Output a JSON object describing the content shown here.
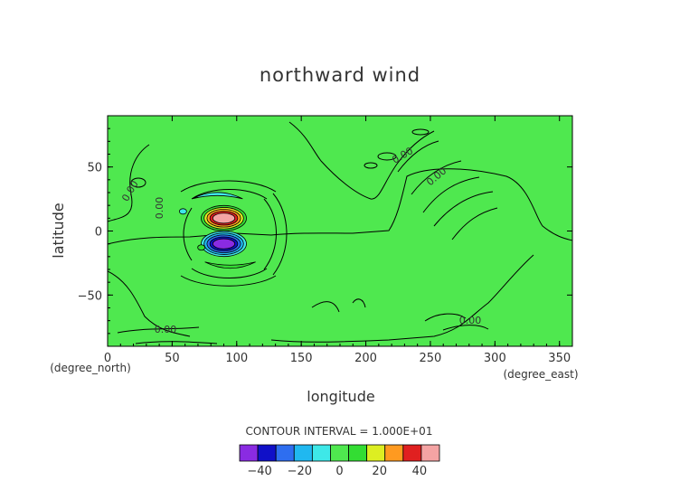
{
  "chart_data": {
    "type": "heatmap",
    "title": "northward wind",
    "xlabel": "longitude",
    "ylabel": "latitude",
    "x_unit": "(degree_east)",
    "y_unit": "(degree_north)",
    "xlim": [
      0,
      360
    ],
    "ylim": [
      -90,
      90
    ],
    "x_ticks": [
      0,
      50,
      100,
      150,
      200,
      250,
      300,
      350
    ],
    "y_ticks": [
      -50,
      0,
      50
    ],
    "contour_interval_text": "CONTOUR INTERVAL = 1.000E+01",
    "contour_labels": [
      "0.00",
      "0.00",
      "0.00",
      "0.00",
      "0.00",
      "0.00"
    ],
    "colorbar": {
      "levels": [
        -50,
        -40,
        -30,
        -20,
        -10,
        0,
        10,
        20,
        30,
        40,
        50
      ],
      "colors": [
        "#8a2be2",
        "#1010c8",
        "#2e6ef0",
        "#20b8f0",
        "#3ee8e8",
        "#4fe84f",
        "#33dd33",
        "#ddee22",
        "#ff9a20",
        "#e02020",
        "#f4a3a3"
      ],
      "tick_labels": [
        "−40",
        "−20",
        "0",
        "20",
        "40"
      ],
      "tick_values": [
        -40,
        -20,
        0,
        20,
        40
      ]
    },
    "background_color": "#4fe84f",
    "features": [
      {
        "name": "positive maximum",
        "center": [
          90,
          10
        ],
        "value": 40
      },
      {
        "name": "negative minimum",
        "center": [
          90,
          -10
        ],
        "value": -40
      },
      {
        "name": "northern negative arc",
        "center": [
          85,
          28
        ],
        "value": -10
      },
      {
        "name": "southern positive arc",
        "center": [
          95,
          -27
        ],
        "value": 10
      }
    ]
  }
}
